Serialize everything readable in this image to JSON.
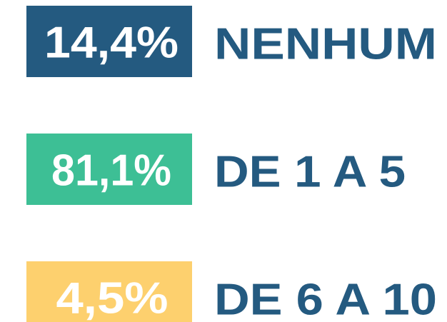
{
  "items": [
    {
      "value": "14,4%",
      "label": "NENHUM",
      "color": "#245a80"
    },
    {
      "value": "81,1%",
      "label": "DE 1 A 5",
      "color": "#3dbf95"
    },
    {
      "value": "4,5%",
      "label": "DE 6 A 10",
      "color": "#fdd06e"
    }
  ]
}
